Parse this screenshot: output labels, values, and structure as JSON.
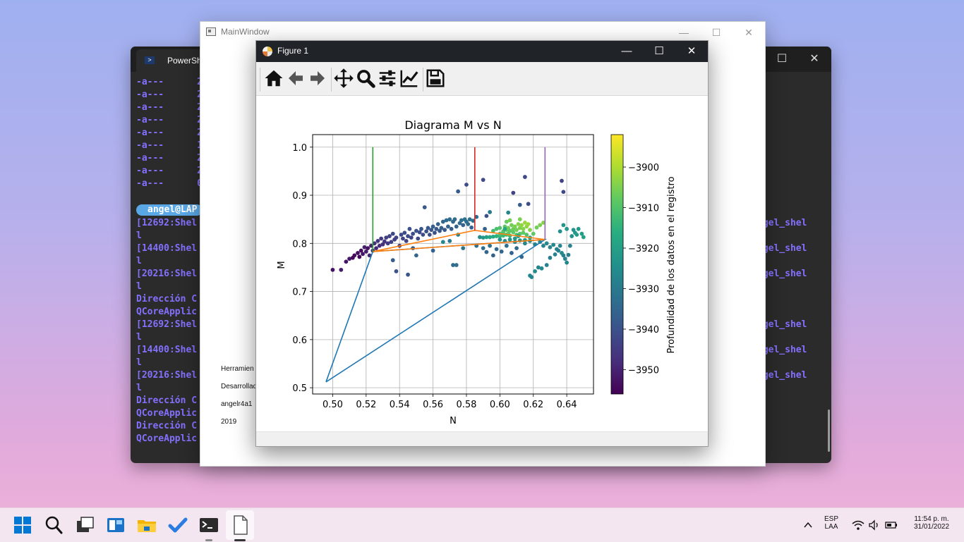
{
  "terminal": {
    "tab_label": "PowerShe",
    "file_rows": [
      {
        "mode": "-a---",
        "num": "2"
      },
      {
        "mode": "-a---",
        "num": "2"
      },
      {
        "mode": "-a---",
        "num": "2"
      },
      {
        "mode": "-a---",
        "num": "2"
      },
      {
        "mode": "-a---",
        "num": "2"
      },
      {
        "mode": "-a---",
        "num": "1"
      },
      {
        "mode": "-a---",
        "num": "2"
      },
      {
        "mode": "-a---",
        "num": "2"
      },
      {
        "mode": "-a---",
        "num": "0"
      }
    ],
    "prompt": "angel@LAP",
    "log_lines": [
      "[12692:Shel",
      "l",
      "[14400:Shel",
      "l",
      "[20216:Shel",
      "l",
      "Dirección C",
      "QCoreApplic",
      "[12692:Shel",
      "l",
      "[14400:Shel",
      "l",
      "[20216:Shel",
      "l",
      "Dirección C",
      "QCoreApplic",
      "Dirección C",
      "QCoreApplic"
    ],
    "right_text": "ngel_shel"
  },
  "mainwindow": {
    "title": "MainWindow",
    "texts": [
      "Herramien",
      "Desarrollad",
      "angelr4a1",
      "2019"
    ]
  },
  "figure": {
    "title": "Figure 1",
    "toolbar": {
      "home_tooltip": "Home",
      "back_tooltip": "Back",
      "forward_tooltip": "Forward",
      "pan_tooltip": "Pan",
      "zoom_tooltip": "Zoom",
      "subplots_tooltip": "Subplots",
      "customize_tooltip": "Customize",
      "save_tooltip": "Save"
    }
  },
  "chart_data": {
    "type": "scatter",
    "title": "Diagrama M vs N",
    "xlabel": "N",
    "ylabel": "M",
    "xlim": [
      0.488,
      0.656
    ],
    "ylim": [
      0.487,
      1.026
    ],
    "xticks": [
      "0.50",
      "0.52",
      "0.54",
      "0.56",
      "0.58",
      "0.60",
      "0.62",
      "0.64"
    ],
    "xtick_values": [
      0.5,
      0.52,
      0.54,
      0.56,
      0.58,
      0.6,
      0.62,
      0.64
    ],
    "yticks": [
      "0.5",
      "0.6",
      "0.7",
      "0.8",
      "0.9",
      "1.0"
    ],
    "ytick_values": [
      0.5,
      0.6,
      0.7,
      0.8,
      0.9,
      1.0
    ],
    "grid": true,
    "colorbar": {
      "label": "Profundidad de los datos en el registro",
      "range": [
        -3956,
        -3892
      ],
      "ticks": [
        "−3900",
        "−3910",
        "−3920",
        "−3930",
        "−3940",
        "−3950"
      ],
      "tick_values": [
        -3900,
        -3910,
        -3920,
        -3930,
        -3940,
        -3950
      ],
      "colormap": "viridis"
    },
    "lines": [
      {
        "color": "#1f77b4",
        "points": [
          [
            0.496,
            0.512
          ],
          [
            0.524,
            0.783
          ],
          [
            0.627,
            0.808
          ],
          [
            0.496,
            0.512
          ]
        ]
      },
      {
        "color": "#ff7f0e",
        "points": [
          [
            0.524,
            0.783
          ],
          [
            0.585,
            0.827
          ],
          [
            0.627,
            0.808
          ],
          [
            0.524,
            0.783
          ]
        ]
      },
      {
        "color": "#2ca02c",
        "points": [
          [
            0.524,
            1.0
          ],
          [
            0.524,
            0.783
          ]
        ]
      },
      {
        "color": "#d62728",
        "points": [
          [
            0.585,
            1.0
          ],
          [
            0.585,
            0.827
          ]
        ]
      },
      {
        "color": "#9467bd",
        "points": [
          [
            0.627,
            1.0
          ],
          [
            0.627,
            0.808
          ]
        ]
      }
    ],
    "scatter": [
      [
        0.5,
        0.745,
        -3953
      ],
      [
        0.505,
        0.745,
        -3951
      ],
      [
        0.508,
        0.762,
        -3953
      ],
      [
        0.51,
        0.768,
        -3952
      ],
      [
        0.512,
        0.77,
        -3955
      ],
      [
        0.513,
        0.775,
        -3954
      ],
      [
        0.515,
        0.78,
        -3953
      ],
      [
        0.516,
        0.772,
        -3955
      ],
      [
        0.517,
        0.785,
        -3954
      ],
      [
        0.518,
        0.778,
        -3952
      ],
      [
        0.519,
        0.792,
        -3950
      ],
      [
        0.52,
        0.783,
        -3951
      ],
      [
        0.521,
        0.79,
        -3953
      ],
      [
        0.522,
        0.775,
        -3949
      ],
      [
        0.523,
        0.795,
        -3950
      ],
      [
        0.524,
        0.785,
        -3948
      ],
      [
        0.525,
        0.8,
        -3947
      ],
      [
        0.526,
        0.79,
        -3949
      ],
      [
        0.527,
        0.805,
        -3946
      ],
      [
        0.528,
        0.795,
        -3948
      ],
      [
        0.529,
        0.81,
        -3945
      ],
      [
        0.53,
        0.798,
        -3947
      ],
      [
        0.531,
        0.804,
        -3946
      ],
      [
        0.532,
        0.812,
        -3944
      ],
      [
        0.533,
        0.8,
        -3945
      ],
      [
        0.534,
        0.815,
        -3943
      ],
      [
        0.535,
        0.803,
        -3944
      ],
      [
        0.536,
        0.82,
        -3942
      ],
      [
        0.537,
        0.808,
        -3944
      ],
      [
        0.538,
        0.812,
        -3943
      ],
      [
        0.54,
        0.795,
        -3945
      ],
      [
        0.541,
        0.818,
        -3942
      ],
      [
        0.542,
        0.81,
        -3943
      ],
      [
        0.543,
        0.822,
        -3941
      ],
      [
        0.544,
        0.805,
        -3944
      ],
      [
        0.545,
        0.815,
        -3942
      ],
      [
        0.546,
        0.83,
        -3940
      ],
      [
        0.547,
        0.812,
        -3943
      ],
      [
        0.548,
        0.82,
        -3941
      ],
      [
        0.55,
        0.826,
        -3940
      ],
      [
        0.551,
        0.81,
        -3942
      ],
      [
        0.552,
        0.823,
        -3941
      ],
      [
        0.553,
        0.83,
        -3939
      ],
      [
        0.554,
        0.818,
        -3941
      ],
      [
        0.555,
        0.875,
        -3938
      ],
      [
        0.556,
        0.825,
        -3940
      ],
      [
        0.557,
        0.832,
        -3938
      ],
      [
        0.558,
        0.818,
        -3941
      ],
      [
        0.559,
        0.828,
        -3939
      ],
      [
        0.56,
        0.835,
        -3937
      ],
      [
        0.561,
        0.822,
        -3940
      ],
      [
        0.562,
        0.83,
        -3938
      ],
      [
        0.563,
        0.84,
        -3936
      ],
      [
        0.564,
        0.826,
        -3939
      ],
      [
        0.565,
        0.832,
        -3937
      ],
      [
        0.566,
        0.845,
        -3935
      ],
      [
        0.567,
        0.828,
        -3938
      ],
      [
        0.568,
        0.848,
        -3934
      ],
      [
        0.569,
        0.835,
        -3936
      ],
      [
        0.57,
        0.85,
        -3933
      ],
      [
        0.571,
        0.83,
        -3937
      ],
      [
        0.572,
        0.845,
        -3935
      ],
      [
        0.573,
        0.85,
        -3934
      ],
      [
        0.574,
        0.835,
        -3936
      ],
      [
        0.575,
        0.908,
        -3938
      ],
      [
        0.576,
        0.842,
        -3934
      ],
      [
        0.577,
        0.848,
        -3933
      ],
      [
        0.578,
        0.838,
        -3936
      ],
      [
        0.579,
        0.85,
        -3932
      ],
      [
        0.58,
        0.845,
        -3933
      ],
      [
        0.581,
        0.84,
        -3934
      ],
      [
        0.582,
        0.85,
        -3932
      ],
      [
        0.583,
        0.833,
        -3936
      ],
      [
        0.584,
        0.847,
        -3933
      ],
      [
        0.586,
        0.855,
        -3934
      ],
      [
        0.588,
        0.813,
        -3925
      ],
      [
        0.59,
        0.812,
        -3922
      ],
      [
        0.592,
        0.813,
        -3920
      ],
      [
        0.594,
        0.813,
        -3918
      ],
      [
        0.596,
        0.814,
        -3917
      ],
      [
        0.598,
        0.815,
        -3915
      ],
      [
        0.6,
        0.815,
        -3914
      ],
      [
        0.602,
        0.816,
        -3913
      ],
      [
        0.604,
        0.818,
        -3912
      ],
      [
        0.606,
        0.816,
        -3913
      ],
      [
        0.596,
        0.826,
        -3912
      ],
      [
        0.598,
        0.83,
        -3911
      ],
      [
        0.6,
        0.832,
        -3910
      ],
      [
        0.602,
        0.825,
        -3909
      ],
      [
        0.603,
        0.835,
        -3908
      ],
      [
        0.604,
        0.828,
        -3907
      ],
      [
        0.605,
        0.832,
        -3906
      ],
      [
        0.606,
        0.826,
        -3908
      ],
      [
        0.607,
        0.838,
        -3906
      ],
      [
        0.608,
        0.83,
        -3907
      ],
      [
        0.609,
        0.835,
        -3905
      ],
      [
        0.61,
        0.828,
        -3906
      ],
      [
        0.611,
        0.84,
        -3904
      ],
      [
        0.612,
        0.832,
        -3905
      ],
      [
        0.613,
        0.838,
        -3903
      ],
      [
        0.614,
        0.83,
        -3904
      ],
      [
        0.615,
        0.843,
        -3902
      ],
      [
        0.616,
        0.835,
        -3903
      ],
      [
        0.617,
        0.84,
        -3902
      ],
      [
        0.618,
        0.828,
        -3904
      ],
      [
        0.6,
        0.82,
        -3911
      ],
      [
        0.602,
        0.822,
        -3910
      ],
      [
        0.605,
        0.82,
        -3909
      ],
      [
        0.608,
        0.823,
        -3908
      ],
      [
        0.61,
        0.818,
        -3910
      ],
      [
        0.612,
        0.82,
        -3909
      ],
      [
        0.614,
        0.822,
        -3908
      ],
      [
        0.616,
        0.818,
        -3910
      ],
      [
        0.62,
        0.82,
        -3908
      ],
      [
        0.622,
        0.833,
        -3906
      ],
      [
        0.624,
        0.838,
        -3905
      ],
      [
        0.626,
        0.843,
        -3904
      ],
      [
        0.604,
        0.845,
        -3907
      ],
      [
        0.606,
        0.848,
        -3906
      ],
      [
        0.612,
        0.85,
        -3905
      ],
      [
        0.6,
        0.808,
        -3924
      ],
      [
        0.603,
        0.805,
        -3925
      ],
      [
        0.606,
        0.808,
        -3923
      ],
      [
        0.609,
        0.803,
        -3926
      ],
      [
        0.612,
        0.806,
        -3924
      ],
      [
        0.615,
        0.8,
        -3927
      ],
      [
        0.618,
        0.805,
        -3925
      ],
      [
        0.621,
        0.798,
        -3927
      ],
      [
        0.624,
        0.803,
        -3925
      ],
      [
        0.626,
        0.795,
        -3928
      ],
      [
        0.628,
        0.8,
        -3926
      ],
      [
        0.63,
        0.792,
        -3928
      ],
      [
        0.632,
        0.797,
        -3926
      ],
      [
        0.634,
        0.788,
        -3929
      ],
      [
        0.636,
        0.795,
        -3927
      ],
      [
        0.638,
        0.775,
        -3929
      ],
      [
        0.639,
        0.768,
        -3928
      ],
      [
        0.64,
        0.76,
        -3927
      ],
      [
        0.635,
        0.785,
        -3928
      ],
      [
        0.637,
        0.78,
        -3926
      ],
      [
        0.618,
        0.733,
        -3926
      ],
      [
        0.619,
        0.73,
        -3927
      ],
      [
        0.621,
        0.742,
        -3925
      ],
      [
        0.623,
        0.75,
        -3927
      ],
      [
        0.625,
        0.748,
        -3926
      ],
      [
        0.628,
        0.755,
        -3928
      ],
      [
        0.63,
        0.77,
        -3929
      ],
      [
        0.633,
        0.777,
        -3928
      ],
      [
        0.641,
        0.776,
        -3929
      ],
      [
        0.642,
        0.795,
        -3928
      ],
      [
        0.643,
        0.815,
        -3924
      ],
      [
        0.645,
        0.822,
        -3922
      ],
      [
        0.647,
        0.83,
        -3922
      ],
      [
        0.649,
        0.82,
        -3921
      ],
      [
        0.65,
        0.813,
        -3920
      ],
      [
        0.638,
        0.838,
        -3923
      ],
      [
        0.64,
        0.83,
        -3922
      ],
      [
        0.636,
        0.825,
        -3924
      ],
      [
        0.644,
        0.828,
        -3923
      ],
      [
        0.646,
        0.818,
        -3921
      ],
      [
        0.59,
        0.79,
        -3933
      ],
      [
        0.592,
        0.782,
        -3935
      ],
      [
        0.594,
        0.795,
        -3932
      ],
      [
        0.596,
        0.775,
        -3936
      ],
      [
        0.598,
        0.788,
        -3934
      ],
      [
        0.601,
        0.783,
        -3935
      ],
      [
        0.604,
        0.795,
        -3933
      ],
      [
        0.607,
        0.78,
        -3936
      ],
      [
        0.61,
        0.79,
        -3934
      ],
      [
        0.613,
        0.772,
        -3935
      ],
      [
        0.586,
        0.795,
        -3933
      ],
      [
        0.578,
        0.79,
        -3932
      ],
      [
        0.572,
        0.755,
        -3934
      ],
      [
        0.574,
        0.755,
        -3933
      ],
      [
        0.56,
        0.785,
        -3936
      ],
      [
        0.55,
        0.775,
        -3935
      ],
      [
        0.545,
        0.735,
        -3939
      ],
      [
        0.538,
        0.742,
        -3940
      ],
      [
        0.536,
        0.765,
        -3937
      ],
      [
        0.548,
        0.79,
        -3938
      ],
      [
        0.594,
        0.865,
        -3930
      ],
      [
        0.605,
        0.864,
        -3927
      ],
      [
        0.59,
        0.932,
        -3942
      ],
      [
        0.608,
        0.905,
        -3943
      ],
      [
        0.612,
        0.88,
        -3937
      ],
      [
        0.615,
        0.938,
        -3942
      ],
      [
        0.617,
        0.882,
        -3941
      ],
      [
        0.637,
        0.93,
        -3943
      ],
      [
        0.638,
        0.907,
        -3942
      ],
      [
        0.591,
        0.83,
        -3936
      ],
      [
        0.58,
        0.922,
        -3941
      ],
      [
        0.592,
        0.857,
        -3940
      ],
      [
        0.57,
        0.805,
        -3930
      ],
      [
        0.575,
        0.818,
        -3928
      ],
      [
        0.566,
        0.803,
        -3926
      ],
      [
        0.603,
        0.83,
        -3918
      ],
      [
        0.615,
        0.807,
        -3920
      ],
      [
        0.618,
        0.812,
        -3919
      ],
      [
        0.611,
        0.815,
        -3921
      ],
      [
        0.609,
        0.81,
        -3922
      ]
    ]
  }
}
